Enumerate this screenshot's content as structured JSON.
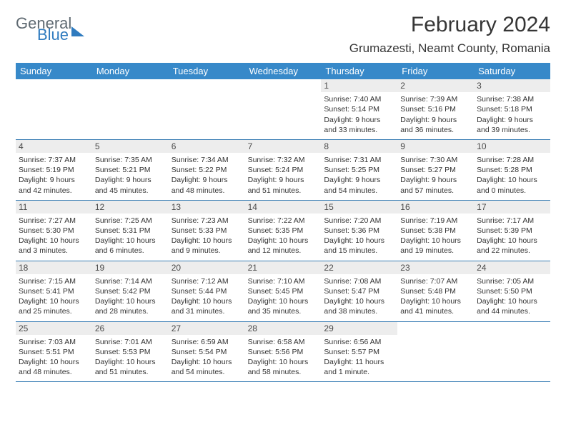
{
  "logo": {
    "general": "General",
    "blue": "Blue"
  },
  "title": "February 2024",
  "location": "Grumazesti, Neamt County, Romania",
  "colors": {
    "header_bg": "#3789c9",
    "header_text": "#ffffff",
    "daynum_bg": "#ededed",
    "week_border": "#3b7fb5",
    "logo_gray": "#5f6a72",
    "logo_blue": "#2f7bbf"
  },
  "day_names": [
    "Sunday",
    "Monday",
    "Tuesday",
    "Wednesday",
    "Thursday",
    "Friday",
    "Saturday"
  ],
  "weeks": [
    [
      null,
      null,
      null,
      null,
      {
        "n": "1",
        "sr": "7:40 AM",
        "ss": "5:14 PM",
        "dl": "9 hours and 33 minutes."
      },
      {
        "n": "2",
        "sr": "7:39 AM",
        "ss": "5:16 PM",
        "dl": "9 hours and 36 minutes."
      },
      {
        "n": "3",
        "sr": "7:38 AM",
        "ss": "5:18 PM",
        "dl": "9 hours and 39 minutes."
      }
    ],
    [
      {
        "n": "4",
        "sr": "7:37 AM",
        "ss": "5:19 PM",
        "dl": "9 hours and 42 minutes."
      },
      {
        "n": "5",
        "sr": "7:35 AM",
        "ss": "5:21 PM",
        "dl": "9 hours and 45 minutes."
      },
      {
        "n": "6",
        "sr": "7:34 AM",
        "ss": "5:22 PM",
        "dl": "9 hours and 48 minutes."
      },
      {
        "n": "7",
        "sr": "7:32 AM",
        "ss": "5:24 PM",
        "dl": "9 hours and 51 minutes."
      },
      {
        "n": "8",
        "sr": "7:31 AM",
        "ss": "5:25 PM",
        "dl": "9 hours and 54 minutes."
      },
      {
        "n": "9",
        "sr": "7:30 AM",
        "ss": "5:27 PM",
        "dl": "9 hours and 57 minutes."
      },
      {
        "n": "10",
        "sr": "7:28 AM",
        "ss": "5:28 PM",
        "dl": "10 hours and 0 minutes."
      }
    ],
    [
      {
        "n": "11",
        "sr": "7:27 AM",
        "ss": "5:30 PM",
        "dl": "10 hours and 3 minutes."
      },
      {
        "n": "12",
        "sr": "7:25 AM",
        "ss": "5:31 PM",
        "dl": "10 hours and 6 minutes."
      },
      {
        "n": "13",
        "sr": "7:23 AM",
        "ss": "5:33 PM",
        "dl": "10 hours and 9 minutes."
      },
      {
        "n": "14",
        "sr": "7:22 AM",
        "ss": "5:35 PM",
        "dl": "10 hours and 12 minutes."
      },
      {
        "n": "15",
        "sr": "7:20 AM",
        "ss": "5:36 PM",
        "dl": "10 hours and 15 minutes."
      },
      {
        "n": "16",
        "sr": "7:19 AM",
        "ss": "5:38 PM",
        "dl": "10 hours and 19 minutes."
      },
      {
        "n": "17",
        "sr": "7:17 AM",
        "ss": "5:39 PM",
        "dl": "10 hours and 22 minutes."
      }
    ],
    [
      {
        "n": "18",
        "sr": "7:15 AM",
        "ss": "5:41 PM",
        "dl": "10 hours and 25 minutes."
      },
      {
        "n": "19",
        "sr": "7:14 AM",
        "ss": "5:42 PM",
        "dl": "10 hours and 28 minutes."
      },
      {
        "n": "20",
        "sr": "7:12 AM",
        "ss": "5:44 PM",
        "dl": "10 hours and 31 minutes."
      },
      {
        "n": "21",
        "sr": "7:10 AM",
        "ss": "5:45 PM",
        "dl": "10 hours and 35 minutes."
      },
      {
        "n": "22",
        "sr": "7:08 AM",
        "ss": "5:47 PM",
        "dl": "10 hours and 38 minutes."
      },
      {
        "n": "23",
        "sr": "7:07 AM",
        "ss": "5:48 PM",
        "dl": "10 hours and 41 minutes."
      },
      {
        "n": "24",
        "sr": "7:05 AM",
        "ss": "5:50 PM",
        "dl": "10 hours and 44 minutes."
      }
    ],
    [
      {
        "n": "25",
        "sr": "7:03 AM",
        "ss": "5:51 PM",
        "dl": "10 hours and 48 minutes."
      },
      {
        "n": "26",
        "sr": "7:01 AM",
        "ss": "5:53 PM",
        "dl": "10 hours and 51 minutes."
      },
      {
        "n": "27",
        "sr": "6:59 AM",
        "ss": "5:54 PM",
        "dl": "10 hours and 54 minutes."
      },
      {
        "n": "28",
        "sr": "6:58 AM",
        "ss": "5:56 PM",
        "dl": "10 hours and 58 minutes."
      },
      {
        "n": "29",
        "sr": "6:56 AM",
        "ss": "5:57 PM",
        "dl": "11 hours and 1 minute."
      },
      null,
      null
    ]
  ],
  "labels": {
    "sunrise": "Sunrise: ",
    "sunset": "Sunset: ",
    "daylight": "Daylight: "
  }
}
